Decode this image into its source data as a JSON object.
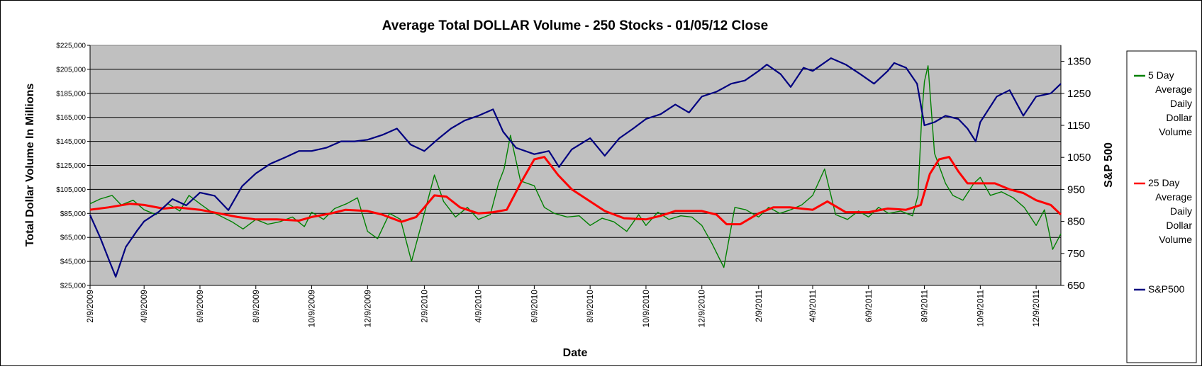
{
  "chart_data": {
    "type": "line",
    "title": "Average Total DOLLAR Volume - 250 Stocks - 01/05/12 Close",
    "xlabel": "Date",
    "ylabel": "Total Dollar Volume In Millions",
    "y2label": "S&P 500",
    "ylim": [
      25000,
      225000
    ],
    "y2lim": [
      650,
      1400
    ],
    "y_ticks": [
      "$25,000",
      "$45,000",
      "$65,000",
      "$85,000",
      "$105,000",
      "$125,000",
      "$145,000",
      "$165,000",
      "$185,000",
      "$205,000",
      "$225,000"
    ],
    "y2_ticks": [
      "650",
      "750",
      "850",
      "950",
      "1050",
      "1150",
      "1250",
      "1350"
    ],
    "x_ticks": [
      "2/9/2009",
      "4/9/2009",
      "6/9/2009",
      "8/9/2009",
      "10/9/2009",
      "12/9/2009",
      "2/9/2010",
      "4/9/2010",
      "6/9/2010",
      "8/9/2010",
      "10/9/2010",
      "12/9/2010",
      "2/9/2011",
      "4/9/2011",
      "6/9/2011",
      "8/9/2011",
      "10/9/2011",
      "12/9/2011"
    ],
    "x_start": "2/9/2009",
    "x_end": "1/5/2012",
    "grid": true,
    "legend_position": "right",
    "plot_background": "#c0c0c0",
    "series": [
      {
        "name": "5 Day Average Daily Dollar Volume",
        "axis": "left",
        "color": "#008000",
        "dates": [
          "2009-02-09",
          "2009-02-20",
          "2009-03-05",
          "2009-03-15",
          "2009-03-28",
          "2009-04-09",
          "2009-04-22",
          "2009-05-05",
          "2009-05-18",
          "2009-05-28",
          "2009-06-09",
          "2009-06-20",
          "2009-07-01",
          "2009-07-14",
          "2009-07-26",
          "2009-08-09",
          "2009-08-22",
          "2009-09-04",
          "2009-09-18",
          "2009-10-01",
          "2009-10-09",
          "2009-10-22",
          "2009-11-03",
          "2009-11-16",
          "2009-11-28",
          "2009-12-09",
          "2009-12-20",
          "2010-01-02",
          "2010-01-14",
          "2010-01-26",
          "2010-02-09",
          "2010-02-20",
          "2010-03-02",
          "2010-03-15",
          "2010-03-28",
          "2010-04-09",
          "2010-04-22",
          "2010-05-01",
          "2010-05-07",
          "2010-05-14",
          "2010-05-25",
          "2010-06-09",
          "2010-06-20",
          "2010-07-01",
          "2010-07-15",
          "2010-07-28",
          "2010-08-09",
          "2010-08-22",
          "2010-09-04",
          "2010-09-18",
          "2010-10-01",
          "2010-10-09",
          "2010-10-22",
          "2010-11-03",
          "2010-11-16",
          "2010-11-28",
          "2010-12-09",
          "2010-12-20",
          "2011-01-02",
          "2011-01-14",
          "2011-01-26",
          "2011-02-09",
          "2011-02-20",
          "2011-03-04",
          "2011-03-16",
          "2011-03-28",
          "2011-04-09",
          "2011-04-22",
          "2011-05-04",
          "2011-05-17",
          "2011-05-29",
          "2011-06-09",
          "2011-06-20",
          "2011-07-01",
          "2011-07-14",
          "2011-07-27",
          "2011-08-02",
          "2011-08-06",
          "2011-08-09",
          "2011-08-13",
          "2011-08-20",
          "2011-09-01",
          "2011-09-09",
          "2011-09-20",
          "2011-10-02",
          "2011-10-09",
          "2011-10-20",
          "2011-11-01",
          "2011-11-14",
          "2011-11-26",
          "2011-12-09",
          "2011-12-18",
          "2011-12-27",
          "2012-01-05"
        ],
        "values": [
          93000,
          97000,
          100000,
          92000,
          96000,
          88000,
          84000,
          93000,
          87000,
          100000,
          93000,
          87000,
          83000,
          78000,
          72000,
          80000,
          76000,
          78000,
          82000,
          74000,
          86000,
          80000,
          89000,
          93000,
          98000,
          70000,
          64000,
          85000,
          80000,
          45000,
          85000,
          117000,
          95000,
          82000,
          90000,
          80000,
          84000,
          110000,
          122000,
          150000,
          112000,
          108000,
          90000,
          85000,
          82000,
          83000,
          75000,
          81000,
          78000,
          70000,
          84000,
          75000,
          86000,
          80000,
          83000,
          82000,
          75000,
          60000,
          40000,
          90000,
          88000,
          82000,
          90000,
          85000,
          88000,
          92000,
          100000,
          122000,
          84000,
          80000,
          87000,
          82000,
          90000,
          85000,
          87000,
          83000,
          100000,
          165000,
          195000,
          208000,
          135000,
          110000,
          100000,
          96000,
          110000,
          115000,
          100000,
          103000,
          98000,
          90000,
          75000,
          88000,
          55000,
          68000
        ]
      },
      {
        "name": "25 Day Average Daily Dollar Volume",
        "axis": "left",
        "color": "#ff0000",
        "dates": [
          "2009-02-09",
          "2009-03-01",
          "2009-03-25",
          "2009-04-09",
          "2009-04-30",
          "2009-05-15",
          "2009-06-09",
          "2009-06-30",
          "2009-07-20",
          "2009-08-09",
          "2009-09-01",
          "2009-09-25",
          "2009-10-09",
          "2009-10-30",
          "2009-11-15",
          "2009-12-09",
          "2009-12-25",
          "2010-01-15",
          "2010-01-31",
          "2010-02-09",
          "2010-02-20",
          "2010-03-05",
          "2010-03-20",
          "2010-04-09",
          "2010-04-25",
          "2010-05-10",
          "2010-05-25",
          "2010-06-09",
          "2010-06-20",
          "2010-07-05",
          "2010-07-20",
          "2010-08-09",
          "2010-08-25",
          "2010-09-15",
          "2010-10-09",
          "2010-10-25",
          "2010-11-10",
          "2010-12-09",
          "2010-12-25",
          "2011-01-05",
          "2011-01-20",
          "2011-02-09",
          "2011-02-25",
          "2011-03-15",
          "2011-04-09",
          "2011-04-25",
          "2011-05-15",
          "2011-06-09",
          "2011-06-30",
          "2011-07-20",
          "2011-08-05",
          "2011-08-15",
          "2011-08-25",
          "2011-09-05",
          "2011-09-15",
          "2011-09-25",
          "2011-10-09",
          "2011-10-25",
          "2011-11-10",
          "2011-11-25",
          "2011-12-09",
          "2011-12-25",
          "2012-01-05"
        ],
        "values": [
          88000,
          90000,
          93000,
          92000,
          89000,
          90000,
          88000,
          85000,
          82000,
          80000,
          80000,
          79000,
          82000,
          85000,
          88000,
          87000,
          84000,
          78000,
          82000,
          90000,
          100000,
          99000,
          90000,
          85000,
          86000,
          88000,
          110000,
          130000,
          132000,
          117000,
          105000,
          95000,
          87000,
          81000,
          80000,
          83000,
          87000,
          87000,
          84000,
          76000,
          76000,
          85000,
          90000,
          90000,
          88000,
          95000,
          86000,
          86000,
          89000,
          88000,
          92000,
          118000,
          130000,
          132000,
          120000,
          110000,
          110000,
          110000,
          105000,
          102000,
          96000,
          92000,
          84000
        ]
      },
      {
        "name": "S&P500",
        "axis": "right",
        "color": "#000080",
        "dates": [
          "2009-02-09",
          "2009-02-20",
          "2009-03-03",
          "2009-03-09",
          "2009-03-20",
          "2009-04-01",
          "2009-04-09",
          "2009-04-25",
          "2009-05-10",
          "2009-05-25",
          "2009-06-09",
          "2009-06-25",
          "2009-07-10",
          "2009-07-25",
          "2009-08-09",
          "2009-08-25",
          "2009-09-10",
          "2009-09-25",
          "2009-10-09",
          "2009-10-25",
          "2009-11-10",
          "2009-11-25",
          "2009-12-09",
          "2009-12-25",
          "2010-01-10",
          "2010-01-25",
          "2010-02-09",
          "2010-02-25",
          "2010-03-10",
          "2010-03-25",
          "2010-04-09",
          "2010-04-25",
          "2010-05-06",
          "2010-05-20",
          "2010-06-09",
          "2010-06-25",
          "2010-07-06",
          "2010-07-20",
          "2010-08-09",
          "2010-08-25",
          "2010-09-10",
          "2010-09-25",
          "2010-10-09",
          "2010-10-25",
          "2010-11-10",
          "2010-11-25",
          "2010-12-09",
          "2010-12-25",
          "2011-01-10",
          "2011-01-25",
          "2011-02-09",
          "2011-02-18",
          "2011-03-05",
          "2011-03-16",
          "2011-03-30",
          "2011-04-09",
          "2011-04-29",
          "2011-05-15",
          "2011-05-31",
          "2011-06-15",
          "2011-06-30",
          "2011-07-07",
          "2011-07-20",
          "2011-08-01",
          "2011-08-09",
          "2011-08-20",
          "2011-09-01",
          "2011-09-15",
          "2011-09-25",
          "2011-10-04",
          "2011-10-09",
          "2011-10-27",
          "2011-11-10",
          "2011-11-25",
          "2011-12-09",
          "2011-12-25",
          "2012-01-05"
        ],
        "values": [
          870,
          800,
          720,
          677,
          770,
          820,
          850,
          880,
          920,
          900,
          940,
          930,
          885,
          960,
          1000,
          1030,
          1050,
          1070,
          1070,
          1080,
          1100,
          1100,
          1105,
          1120,
          1140,
          1090,
          1070,
          1110,
          1140,
          1165,
          1180,
          1200,
          1130,
          1080,
          1060,
          1070,
          1020,
          1075,
          1110,
          1055,
          1110,
          1140,
          1170,
          1185,
          1215,
          1190,
          1240,
          1255,
          1280,
          1290,
          1320,
          1340,
          1310,
          1270,
          1330,
          1320,
          1360,
          1340,
          1310,
          1280,
          1320,
          1345,
          1330,
          1280,
          1150,
          1160,
          1180,
          1170,
          1140,
          1100,
          1160,
          1240,
          1260,
          1180,
          1240,
          1250,
          1280
        ]
      }
    ]
  },
  "legend": {
    "items": [
      {
        "lines": [
          "5 Day",
          "Average",
          "Daily",
          "Dollar",
          "Volume"
        ],
        "color": "#008000"
      },
      {
        "lines": [
          "25 Day",
          "Average",
          "Daily",
          "Dollar",
          "Volume"
        ],
        "color": "#ff0000"
      },
      {
        "lines": [
          "S&P500"
        ],
        "color": "#000080"
      }
    ]
  }
}
